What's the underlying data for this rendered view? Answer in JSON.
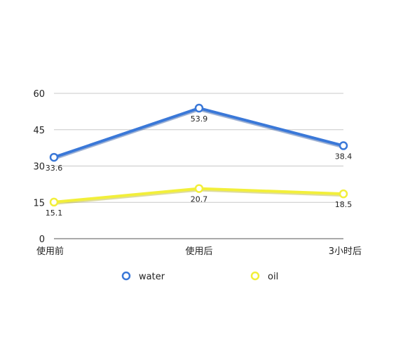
{
  "chart_data": {
    "type": "line",
    "categories": [
      "使用前",
      "使用后",
      "3小时后"
    ],
    "ylim": [
      0,
      60
    ],
    "yticks": [
      0,
      15,
      30,
      45,
      60
    ],
    "grid": true,
    "legend_position": "bottom",
    "series": [
      {
        "name": "water",
        "values": [
          33.6,
          53.9,
          38.4
        ],
        "color": "#3a78d8",
        "shadow": "#2a55a0"
      },
      {
        "name": "oil",
        "values": [
          15.1,
          20.7,
          18.5
        ],
        "color": "#f2ef3a",
        "shadow": "#b5b22a"
      }
    ]
  }
}
